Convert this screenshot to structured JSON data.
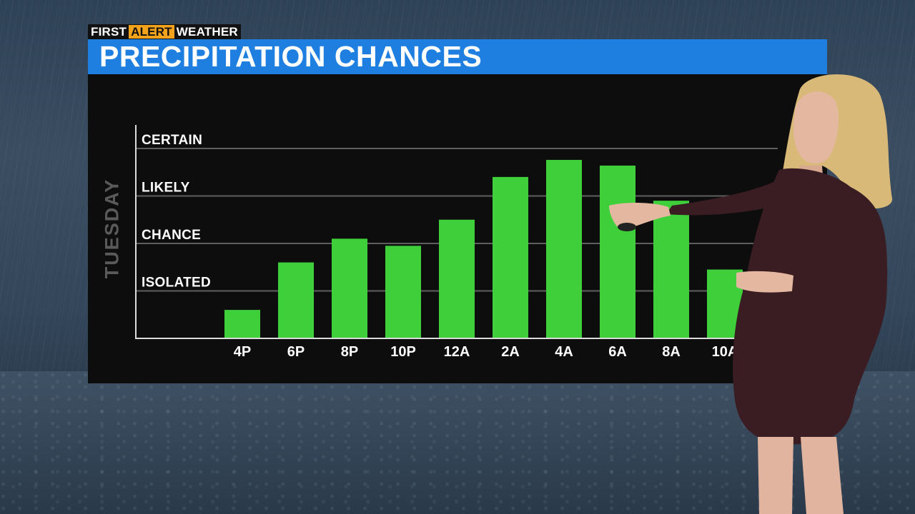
{
  "brand": {
    "first": "FIRST",
    "alert": "ALERT",
    "weather": "WEATHER"
  },
  "colors": {
    "title_bar": "#1e7fe0",
    "bar": "#3ecf3a",
    "panel": "#0d0d0d",
    "alert": "#f2a21b"
  },
  "chart_data": {
    "type": "bar",
    "title": "PRECIPITATION CHANCES",
    "xlabel": "",
    "ylabel": "TUESDAY",
    "categories": [
      "4P",
      "6P",
      "8P",
      "10P",
      "12A",
      "2A",
      "4A",
      "6A",
      "8A",
      "10A"
    ],
    "y_levels": [
      "ISOLATED",
      "CHANCE",
      "LIKELY",
      "CERTAIN"
    ],
    "ylim": [
      0,
      4
    ],
    "values": [
      0.6,
      1.6,
      2.1,
      1.95,
      2.5,
      3.4,
      3.76,
      3.64,
      2.9,
      1.45
    ],
    "grid": true
  }
}
